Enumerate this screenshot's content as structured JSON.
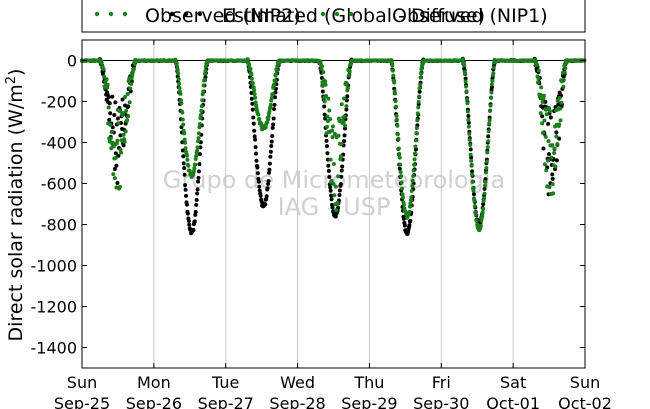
{
  "chart_data": {
    "type": "scatter",
    "ylabel": "Direct solar radiation (W/m",
    "ylabel_sup": "2",
    "ylabel_end": ")",
    "ylim": [
      -1500,
      100
    ],
    "yticks": [
      0,
      -200,
      -400,
      -600,
      -800,
      -1000,
      -1200,
      -1400
    ],
    "xlim": [
      0,
      7
    ],
    "xticks": [
      {
        "day": 0,
        "line1": "Sun",
        "line2": "Sep-25"
      },
      {
        "day": 1,
        "line1": "Mon",
        "line2": "Sep-26"
      },
      {
        "day": 2,
        "line1": "Tue",
        "line2": "Sep-27"
      },
      {
        "day": 3,
        "line1": "Wed",
        "line2": "Sep-28"
      },
      {
        "day": 4,
        "line1": "Thu",
        "line2": "Sep-29"
      },
      {
        "day": 5,
        "line1": "Fri",
        "line2": "Sep-30"
      },
      {
        "day": 6,
        "line1": "Sat",
        "line2": "Oct-01"
      },
      {
        "day": 7,
        "line1": "Sun",
        "line2": "Oct-02"
      }
    ],
    "grid": "vertical",
    "zero_line": 0,
    "series": [
      {
        "name": "Observed (NIP2)",
        "color": "#1a7f1a",
        "marker": "circle",
        "days": [
          {
            "start": 0.25,
            "end": 0.75,
            "peak": -650
          },
          {
            "start": 1.3,
            "end": 1.75,
            "peak": -560
          },
          {
            "start": 2.3,
            "end": 2.75,
            "peak": -330
          },
          {
            "start": 3.3,
            "end": 3.75,
            "peak": -740
          },
          {
            "start": 4.3,
            "end": 4.75,
            "peak": -760
          },
          {
            "start": 5.3,
            "end": 5.75,
            "peak": -820
          },
          {
            "start": 6.3,
            "end": 6.75,
            "peak": -700
          }
        ]
      },
      {
        "name": "Estimated (Global - Diffuse)",
        "color": "#000000",
        "marker": "circle",
        "days": [
          {
            "start": 0.25,
            "end": 0.75,
            "peak": -600
          },
          {
            "start": 1.3,
            "end": 1.75,
            "peak": -840
          },
          {
            "start": 2.3,
            "end": 2.75,
            "peak": -710
          },
          {
            "start": 3.3,
            "end": 3.75,
            "peak": -760
          },
          {
            "start": 4.3,
            "end": 4.75,
            "peak": -840
          },
          {
            "start": 5.3,
            "end": 5.75,
            "peak": -800
          },
          {
            "start": 6.3,
            "end": 6.75,
            "peak": -720
          }
        ]
      },
      {
        "name": "Observed (NIP1)",
        "color": "#1a7f1a",
        "marker": "circle",
        "days": []
      }
    ],
    "legend_placement": "top"
  },
  "watermark": {
    "line1": "Grupo de Micrometeorologia",
    "line2": "IAG - USP"
  }
}
